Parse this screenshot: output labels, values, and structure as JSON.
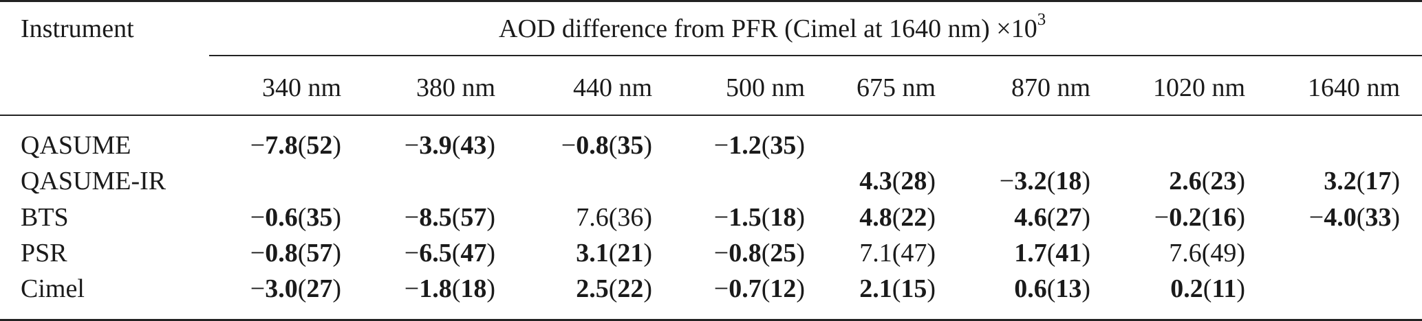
{
  "table": {
    "header_instrument": "Instrument",
    "header_group": "AOD difference from PFR (Cimel at 1640 nm) ×10",
    "header_group_sup": "3",
    "wavelengths": [
      "340 nm",
      "380 nm",
      "440 nm",
      "500 nm",
      "675 nm",
      "870 nm",
      "1020 nm",
      "1640 nm"
    ],
    "rows": [
      {
        "instrument": "QASUME",
        "cells": [
          {
            "sign": "−",
            "value": "7.8",
            "unc": "52",
            "bold": true
          },
          {
            "sign": "−",
            "value": "3.9",
            "unc": "43",
            "bold": true
          },
          {
            "sign": "−",
            "value": "0.8",
            "unc": "35",
            "bold": true
          },
          {
            "sign": "−",
            "value": "1.2",
            "unc": "35",
            "bold": true
          },
          null,
          null,
          null,
          null
        ]
      },
      {
        "instrument": "QASUME-IR",
        "cells": [
          null,
          null,
          null,
          null,
          {
            "sign": "",
            "value": "4.3",
            "unc": "28",
            "bold": true
          },
          {
            "sign": "−",
            "value": "3.2",
            "unc": "18",
            "bold": true
          },
          {
            "sign": "",
            "value": "2.6",
            "unc": "23",
            "bold": true
          },
          {
            "sign": "",
            "value": "3.2",
            "unc": "17",
            "bold": true
          }
        ]
      },
      {
        "instrument": "BTS",
        "cells": [
          {
            "sign": "−",
            "value": "0.6",
            "unc": "35",
            "bold": true
          },
          {
            "sign": "−",
            "value": "8.5",
            "unc": "57",
            "bold": true
          },
          {
            "sign": "",
            "value": "7.6",
            "unc": "36",
            "bold": false
          },
          {
            "sign": "−",
            "value": "1.5",
            "unc": "18",
            "bold": true
          },
          {
            "sign": "",
            "value": "4.8",
            "unc": "22",
            "bold": true
          },
          {
            "sign": "",
            "value": "4.6",
            "unc": "27",
            "bold": true
          },
          {
            "sign": "−",
            "value": "0.2",
            "unc": "16",
            "bold": true
          },
          {
            "sign": "−",
            "value": "4.0",
            "unc": "33",
            "bold": true
          }
        ]
      },
      {
        "instrument": "PSR",
        "cells": [
          {
            "sign": "−",
            "value": "0.8",
            "unc": "57",
            "bold": true
          },
          {
            "sign": "−",
            "value": "6.5",
            "unc": "47",
            "bold": true
          },
          {
            "sign": "",
            "value": "3.1",
            "unc": "21",
            "bold": true
          },
          {
            "sign": "−",
            "value": "0.8",
            "unc": "25",
            "bold": true
          },
          {
            "sign": "",
            "value": "7.1",
            "unc": "47",
            "bold": false
          },
          {
            "sign": "",
            "value": "1.7",
            "unc": "41",
            "bold": true
          },
          {
            "sign": "",
            "value": "7.6",
            "unc": "49",
            "bold": false
          },
          null
        ]
      },
      {
        "instrument": "Cimel",
        "cells": [
          {
            "sign": "−",
            "value": "3.0",
            "unc": "27",
            "bold": true
          },
          {
            "sign": "−",
            "value": "1.8",
            "unc": "18",
            "bold": true
          },
          {
            "sign": "",
            "value": "2.5",
            "unc": "22",
            "bold": true
          },
          {
            "sign": "−",
            "value": "0.7",
            "unc": "12",
            "bold": true
          },
          {
            "sign": "",
            "value": "2.1",
            "unc": "15",
            "bold": true
          },
          {
            "sign": "",
            "value": "0.6",
            "unc": "13",
            "bold": true
          },
          {
            "sign": "",
            "value": "0.2",
            "unc": "11",
            "bold": true
          },
          null
        ]
      }
    ]
  }
}
